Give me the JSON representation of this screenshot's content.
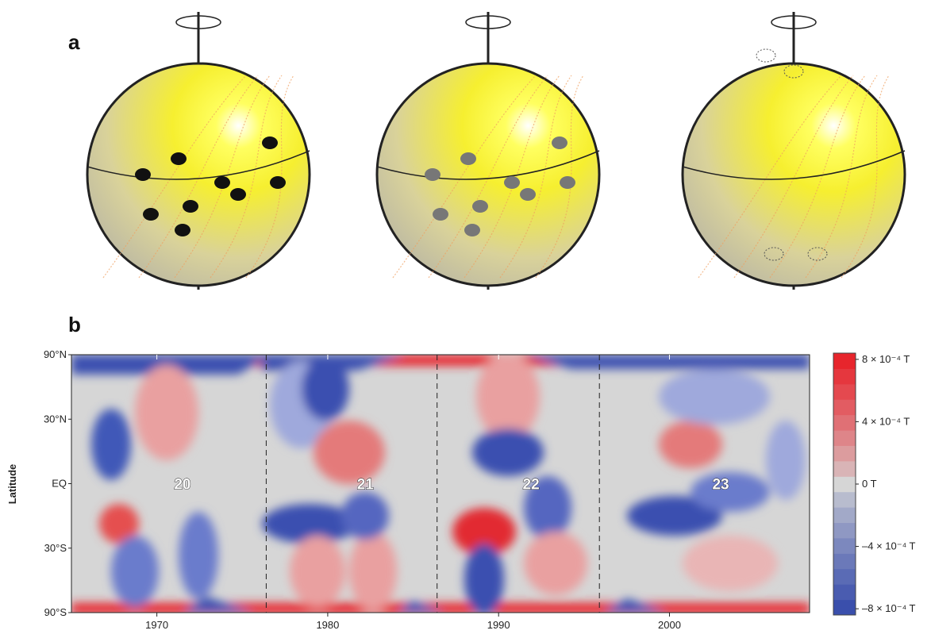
{
  "panel_a": {
    "label": "a"
  },
  "chart_data": {
    "type": "heatmap",
    "label": "b",
    "y_label": "Latitude",
    "y_scale": "sine",
    "xlim": [
      1965,
      2008.2
    ],
    "xticks": [
      1970,
      1980,
      1990,
      2000
    ],
    "ylim": [
      -90,
      90
    ],
    "yticks": [
      {
        "value": 90,
        "label": "90°N"
      },
      {
        "value": 30,
        "label": "30°N"
      },
      {
        "value": 0,
        "label": "EQ"
      },
      {
        "value": -30,
        "label": "30°S"
      },
      {
        "value": -90,
        "label": "90°S"
      }
    ],
    "cycle_boundaries": [
      1976.4,
      1986.4,
      1995.9
    ],
    "annotations": [
      {
        "text": "20",
        "x": 1971.5,
        "y": 0
      },
      {
        "text": "21",
        "x": 1982.2,
        "y": 0
      },
      {
        "text": "22",
        "x": 1991.9,
        "y": 0
      },
      {
        "text": "23",
        "x": 2003.0,
        "y": 0
      }
    ],
    "colorbar": {
      "clim": [
        -8.4,
        8.4
      ],
      "ticks": [
        {
          "value": 8,
          "label": "8 × 10⁻⁴ T"
        },
        {
          "value": 4,
          "label": "4 × 10⁻⁴ T"
        },
        {
          "value": 0,
          "label": "0 T"
        },
        {
          "value": -4,
          "label": "–4 × 10⁻⁴ T"
        },
        {
          "value": -8,
          "label": "–8 × 10⁻⁴ T"
        }
      ]
    }
  }
}
